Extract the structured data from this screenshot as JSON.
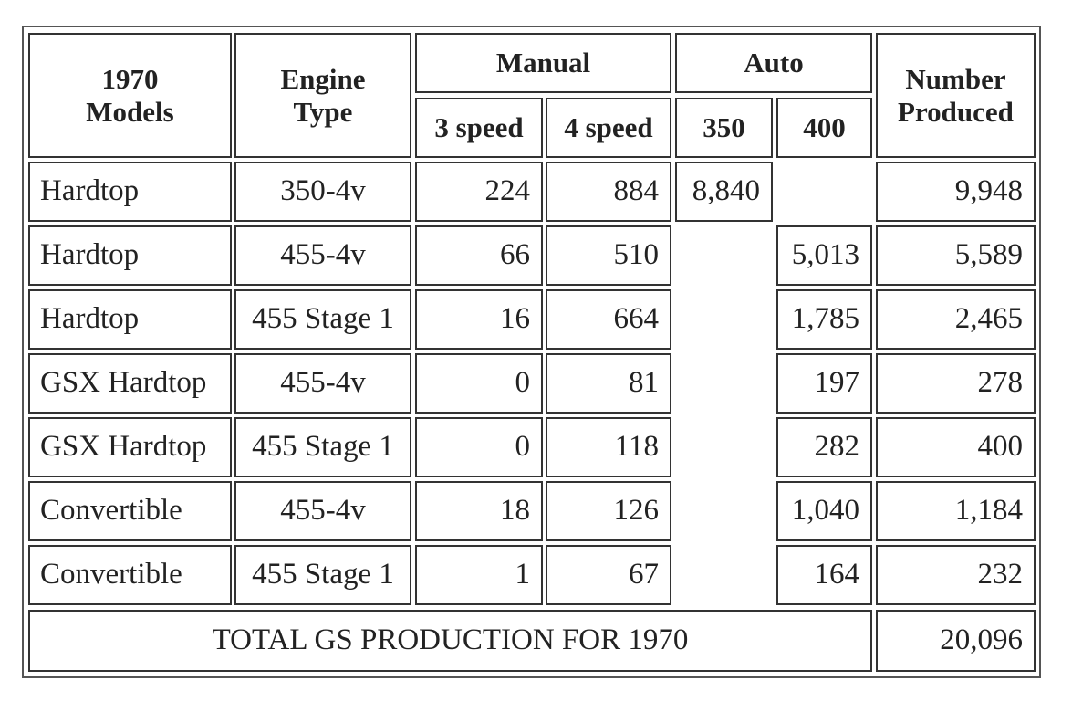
{
  "table": {
    "headers": {
      "models": "1970\nModels",
      "engine": "Engine\nType",
      "manual": "Manual",
      "auto": "Auto",
      "number": "Number\nProduced",
      "manual_3": "3 speed",
      "manual_4": "4 speed",
      "auto_350": "350",
      "auto_400": "400"
    },
    "rows": [
      {
        "model": "Hardtop",
        "engine": "350-4v",
        "m3": "224",
        "m4": "884",
        "a350": "8,840",
        "a400": "",
        "total": "9,948"
      },
      {
        "model": "Hardtop",
        "engine": "455-4v",
        "m3": "66",
        "m4": "510",
        "a350": "",
        "a400": "5,013",
        "total": "5,589"
      },
      {
        "model": "Hardtop",
        "engine": "455 Stage 1",
        "m3": "16",
        "m4": "664",
        "a350": "",
        "a400": "1,785",
        "total": "2,465"
      },
      {
        "model": "GSX Hardtop",
        "engine": "455-4v",
        "m3": "0",
        "m4": "81",
        "a350": "",
        "a400": "197",
        "total": "278"
      },
      {
        "model": "GSX Hardtop",
        "engine": "455 Stage 1",
        "m3": "0",
        "m4": "118",
        "a350": "",
        "a400": "282",
        "total": "400"
      },
      {
        "model": "Convertible",
        "engine": "455-4v",
        "m3": "18",
        "m4": "126",
        "a350": "",
        "a400": "1,040",
        "total": "1,184"
      },
      {
        "model": "Convertible",
        "engine": "455 Stage 1",
        "m3": "1",
        "m4": "67",
        "a350": "",
        "a400": "164",
        "total": "232"
      }
    ],
    "total_label": "TOTAL GS PRODUCTION FOR 1970",
    "total_value": "20,096"
  }
}
